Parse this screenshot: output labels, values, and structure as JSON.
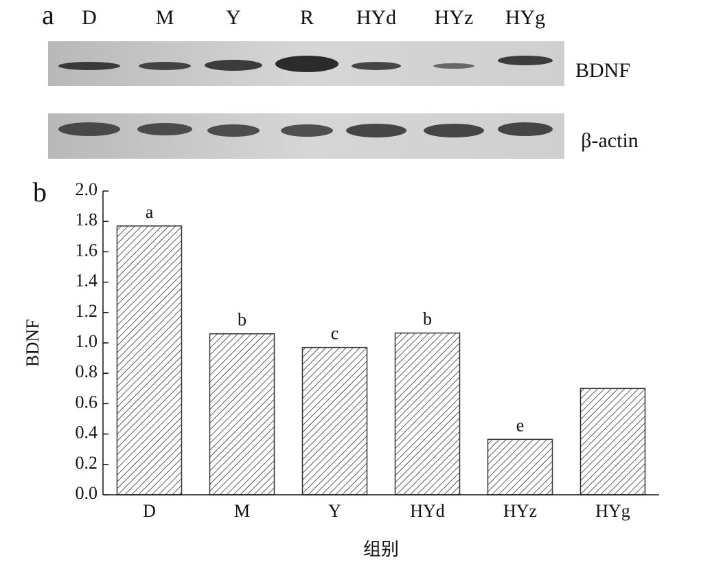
{
  "panel_labels": [
    "a",
    "b"
  ],
  "blot": {
    "lanes": [
      "D",
      "M",
      "Y",
      "R",
      "HYd",
      "HYz",
      "HYg"
    ],
    "rows": [
      "BDNF",
      "β-actin"
    ]
  },
  "chart_data": {
    "type": "bar",
    "y_label": "BDNF",
    "x_label": "组别",
    "categories": [
      "D",
      "M",
      "Y",
      "HYd",
      "HYz",
      "HYg"
    ],
    "values": [
      1.77,
      1.06,
      0.97,
      1.065,
      0.365,
      0.7
    ],
    "significance_labels": [
      "a",
      "b",
      "c",
      "b",
      "e",
      null
    ],
    "color": "#333333",
    "ylim": [
      0,
      2.0
    ],
    "yticks": [
      {
        "value": 0,
        "label": "0.0"
      },
      0.2,
      0.4,
      0.6,
      0.8,
      {
        "value": 1.0,
        "label": "1.0"
      },
      1.2,
      1.4,
      1.6,
      1.8,
      {
        "value": 2.0,
        "label": "2.0"
      }
    ],
    "grid": false
  }
}
